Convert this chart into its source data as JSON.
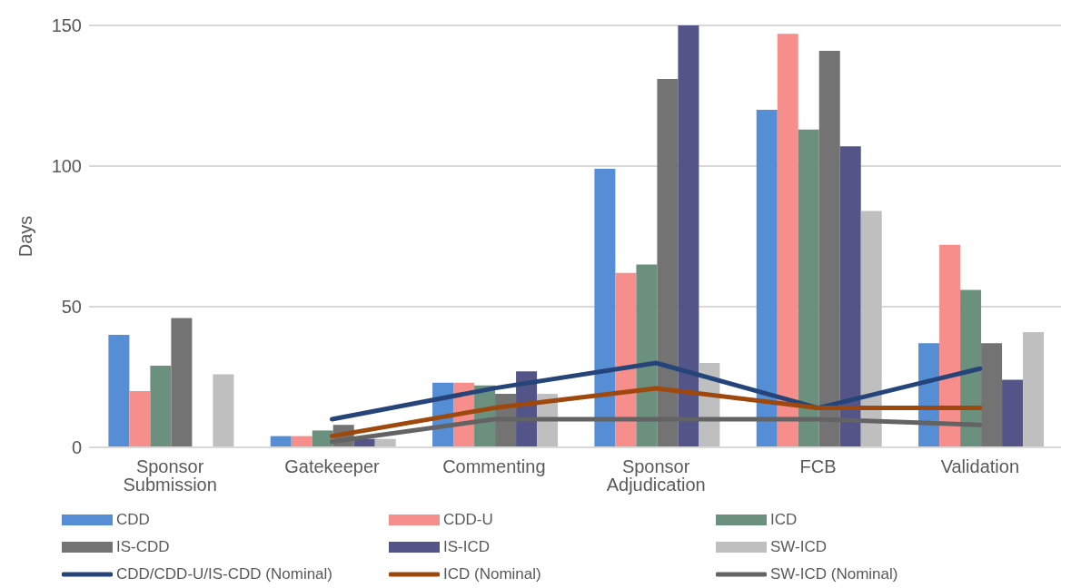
{
  "chart_data": {
    "type": "bar",
    "ylabel": "Days",
    "categories": [
      "Sponsor Submission",
      "Gatekeeper",
      "Commenting",
      "Sponsor Adjudication",
      "FCB",
      "Validation"
    ],
    "ylim": [
      0,
      150
    ],
    "yticks": [
      0,
      50,
      100,
      150
    ],
    "grid": "y",
    "legend": "bottom",
    "series": [
      {
        "name": "CDD",
        "color": "#558ed5",
        "values": [
          40,
          4,
          23,
          99,
          120,
          37
        ]
      },
      {
        "name": "CDD-U",
        "color": "#f68e8c",
        "values": [
          20,
          4,
          23,
          62,
          147,
          72
        ]
      },
      {
        "name": "ICD",
        "color": "#6b907e",
        "values": [
          29,
          6,
          22,
          65,
          113,
          56
        ]
      },
      {
        "name": "IS-CDD",
        "color": "#737373",
        "values": [
          46,
          8,
          19,
          131,
          141,
          37
        ]
      },
      {
        "name": "IS-ICD",
        "color": "#535488",
        "values": [
          null,
          3,
          27,
          150,
          107,
          24
        ]
      },
      {
        "name": "SW-ICD",
        "color": "#bfbfbf",
        "values": [
          26,
          3,
          19,
          30,
          84,
          41
        ]
      },
      {
        "name": "CDD/CDD-U/IS-CDD (Nominal)",
        "type": "line",
        "color": "#254479",
        "values": [
          null,
          10,
          21,
          30,
          14,
          28
        ]
      },
      {
        "name": "ICD (Nominal)",
        "type": "line",
        "color": "#9e480e",
        "values": [
          null,
          4,
          14,
          21,
          14,
          14
        ]
      },
      {
        "name": "SW-ICD (Nominal)",
        "type": "line",
        "color": "#636363",
        "values": [
          null,
          2,
          10,
          10,
          10,
          8
        ]
      }
    ]
  }
}
